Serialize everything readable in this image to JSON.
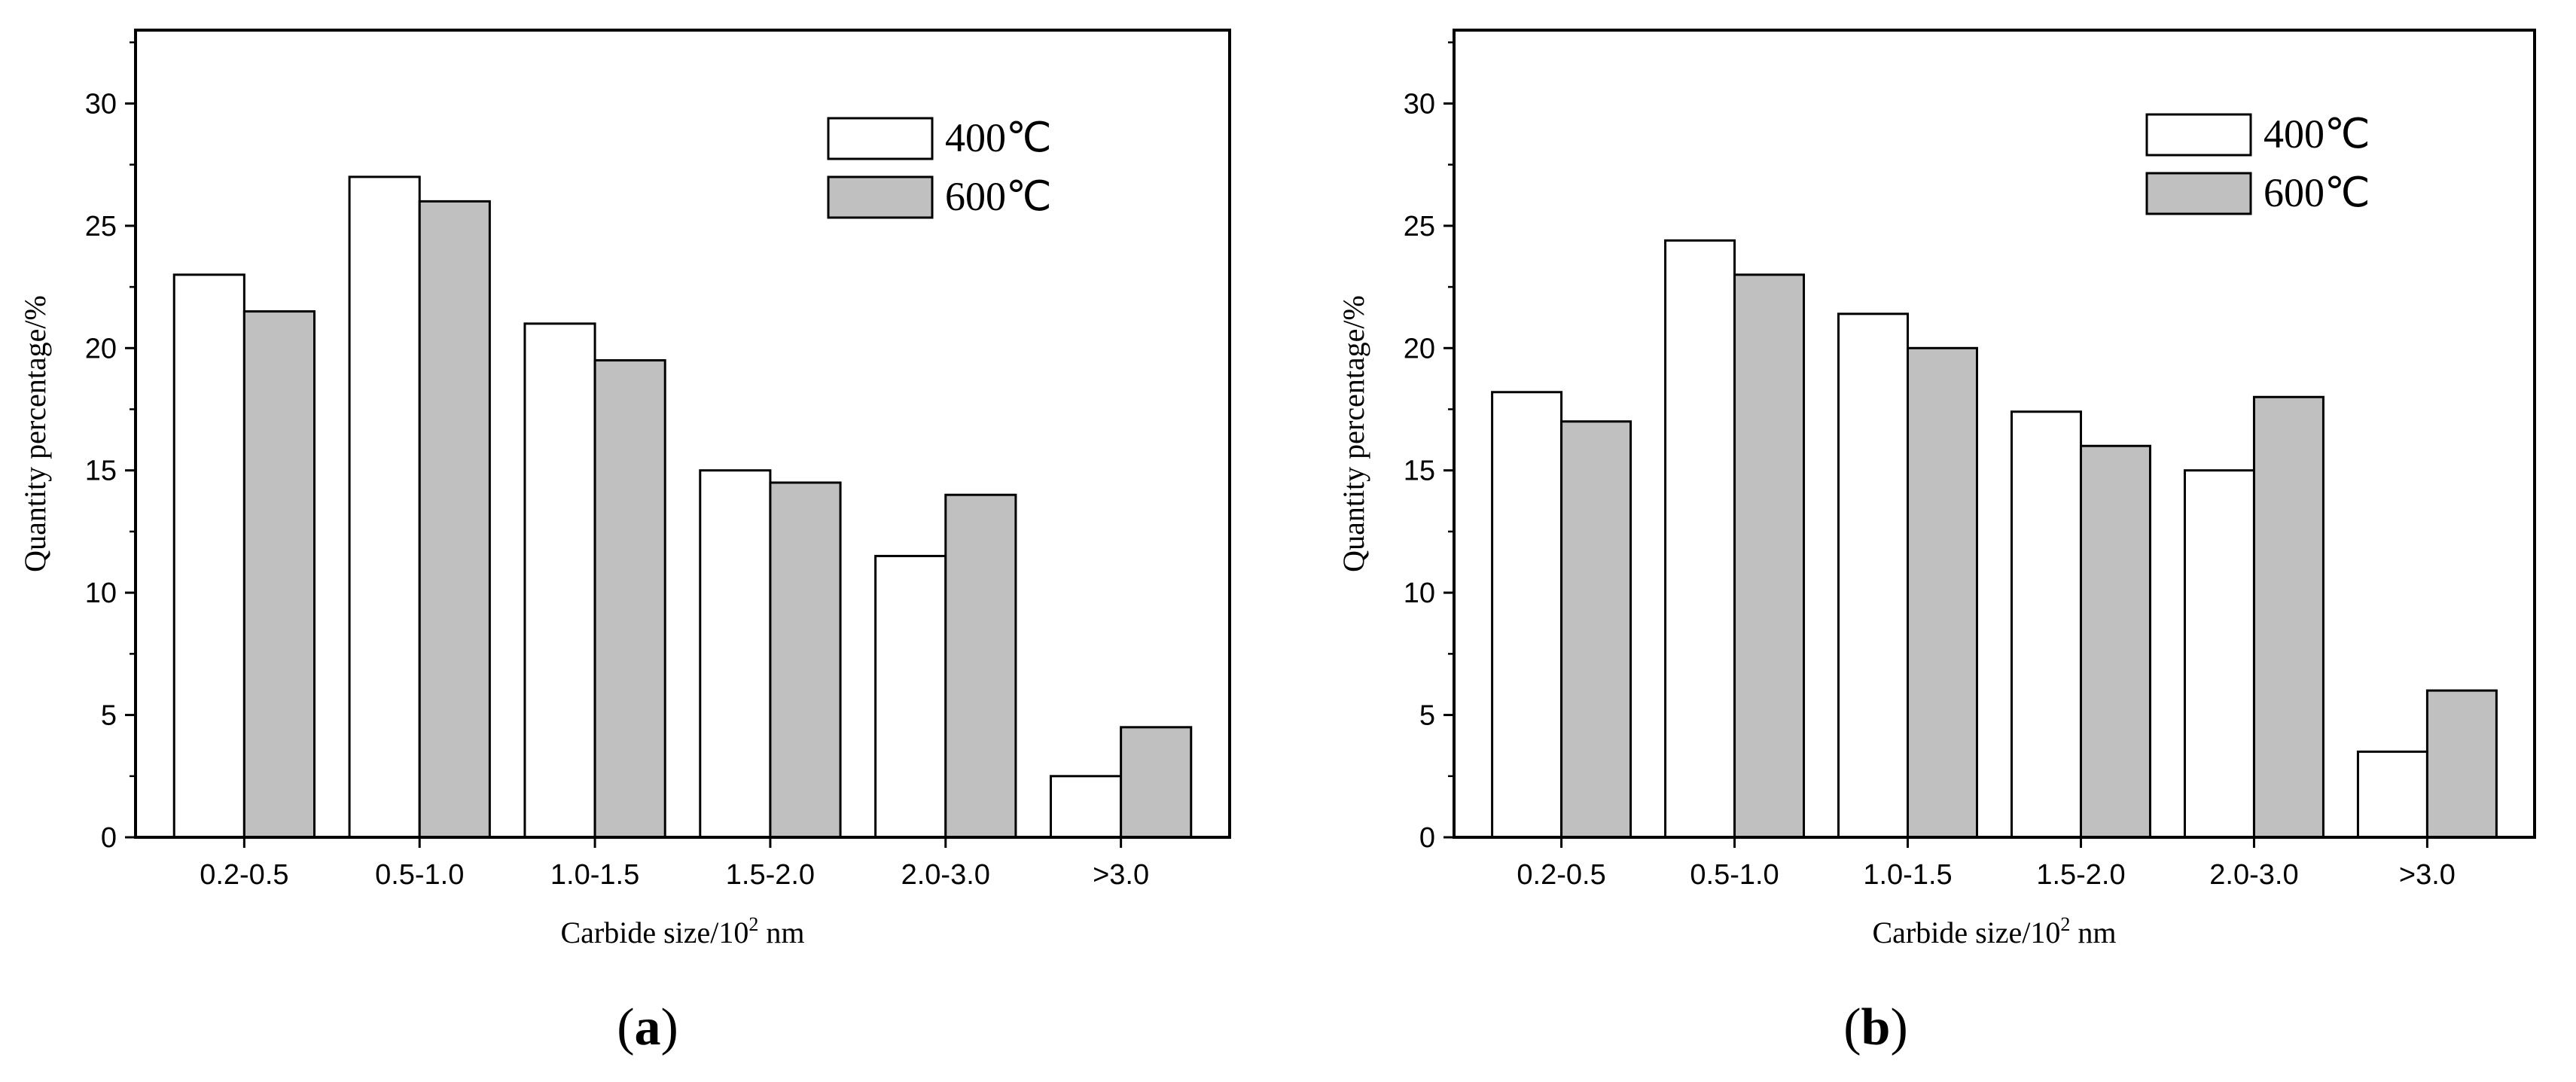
{
  "colors": {
    "series_400": "#ffffff",
    "series_600": "#c0c0c0",
    "axis": "#000000"
  },
  "chart_data": [
    {
      "type": "bar",
      "panel_label": "a",
      "categories": [
        "0.2-0.5",
        "0.5-1.0",
        "1.0-1.5",
        "1.5-2.0",
        "2.0-3.0",
        ">3.0"
      ],
      "series": [
        {
          "name": "400℃",
          "values": [
            23,
            27,
            21,
            15,
            11.5,
            2.5
          ]
        },
        {
          "name": "600℃",
          "values": [
            21.5,
            26,
            19.5,
            14.5,
            14,
            4.5
          ]
        }
      ],
      "ylabel": "Quantity percentage/%",
      "xlabel_main": "Carbide size/10",
      "xlabel_sup": "2",
      "xlabel_unit": " nm",
      "ylim": [
        0,
        33
      ],
      "yticks": [
        0,
        5,
        10,
        15,
        20,
        25,
        30
      ],
      "legend": "top-right"
    },
    {
      "type": "bar",
      "panel_label": "b",
      "categories": [
        "0.2-0.5",
        "0.5-1.0",
        "1.0-1.5",
        "1.5-2.0",
        "2.0-3.0",
        ">3.0"
      ],
      "series": [
        {
          "name": "400℃",
          "values": [
            18.2,
            24.4,
            21.4,
            17.4,
            15,
            3.5
          ]
        },
        {
          "name": "600℃",
          "values": [
            17,
            23,
            20,
            16,
            18,
            6
          ]
        }
      ],
      "ylabel": "Quantity percentage/%",
      "xlabel_main": "Carbide size/10",
      "xlabel_sup": "2",
      "xlabel_unit": " nm",
      "ylim": [
        0,
        33
      ],
      "yticks": [
        0,
        5,
        10,
        15,
        20,
        25,
        30
      ],
      "legend": "top-right"
    }
  ]
}
